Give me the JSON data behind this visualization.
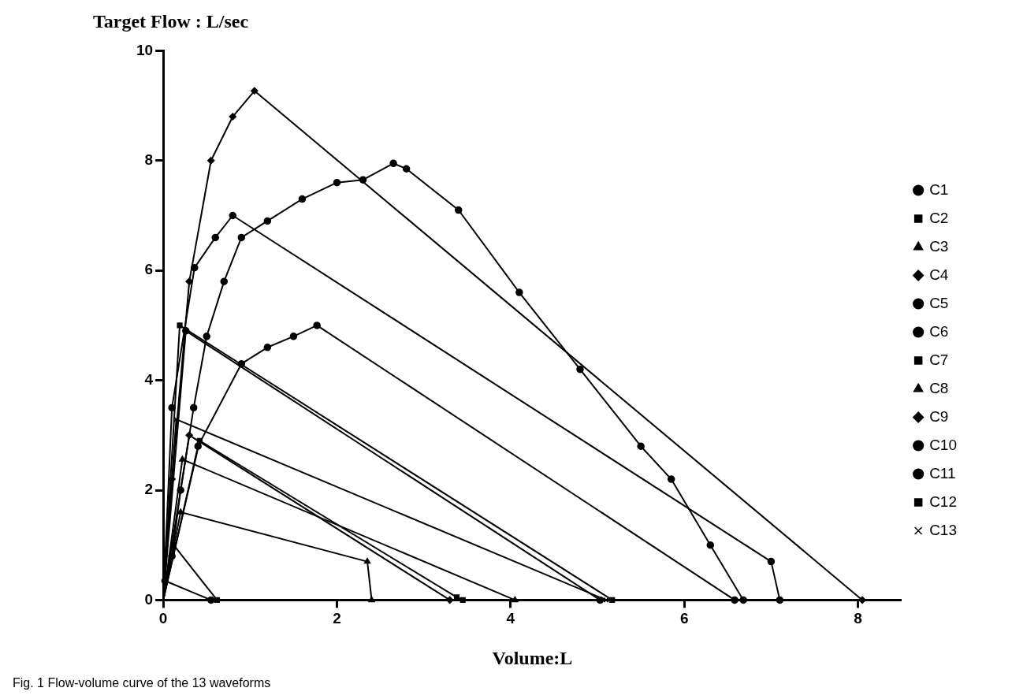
{
  "chart_data": {
    "type": "line",
    "ylabel": "Target Flow : L/sec",
    "xlabel": "Volume:L",
    "annotations": [
      "Fig. 1 Flow-volume curve of the 13 waveforms"
    ],
    "xlim": [
      0,
      8.5
    ],
    "xticks": [
      0,
      2,
      4,
      6,
      8
    ],
    "ylim": [
      0,
      10
    ],
    "yticks": [
      0,
      2,
      4,
      6,
      8,
      10
    ],
    "grid": false,
    "legend": "right",
    "line_style": "solid",
    "series": [
      {
        "name": "C1",
        "color": "#000000",
        "marker": "circle",
        "x": [
          0,
          0.02,
          0.55
        ],
        "values": [
          0,
          0.35,
          0
        ]
      },
      {
        "name": "C2",
        "color": "#000000",
        "marker": "square",
        "x": [
          0,
          0.12,
          0.62
        ],
        "values": [
          0,
          1.0,
          0
        ]
      },
      {
        "name": "C3",
        "color": "#000000",
        "marker": "triangle",
        "x": [
          0,
          0.2,
          2.35,
          2.4
        ],
        "values": [
          0,
          1.6,
          0.7,
          0
        ]
      },
      {
        "name": "C4",
        "color": "#000000",
        "marker": "diamond",
        "x": [
          0,
          0.1,
          0.3,
          0.55,
          0.8,
          1.05,
          8.05
        ],
        "values": [
          0,
          2.2,
          5.8,
          8,
          8.8,
          9.27,
          0
        ]
      },
      {
        "name": "C5",
        "color": "#000000",
        "marker": "circle",
        "x": [
          0,
          0.1,
          0.36,
          0.6,
          0.8,
          7.0,
          7.1
        ],
        "values": [
          0,
          3.5,
          6.05,
          6.6,
          7.0,
          0.7,
          0
        ]
      },
      {
        "name": "C6",
        "color": "#000000",
        "marker": "circle",
        "x": [
          0,
          0.1,
          0.2,
          0.35,
          0.5,
          0.7,
          0.9,
          1.2,
          1.6,
          2.0,
          2.3,
          2.65,
          2.8,
          3.4,
          4.1,
          4.8,
          5.5,
          5.85,
          6.3,
          6.68
        ],
        "values": [
          0,
          0.8,
          2,
          3.5,
          4.8,
          5.8,
          6.6,
          6.9,
          7.3,
          7.6,
          7.65,
          7.95,
          7.85,
          7.1,
          5.6,
          4.2,
          2.8,
          2.2,
          1.0,
          0
        ]
      },
      {
        "name": "C7",
        "color": "#000000",
        "marker": "square",
        "x": [
          0,
          0.42,
          3.38,
          3.45
        ],
        "values": [
          0,
          2.9,
          0.05,
          0
        ]
      },
      {
        "name": "C8",
        "color": "#000000",
        "marker": "triangle",
        "x": [
          0,
          0.22,
          4.05
        ],
        "values": [
          0,
          2.56,
          0
        ]
      },
      {
        "name": "C9",
        "color": "#000000",
        "marker": "diamond",
        "x": [
          0,
          0.3,
          3.3
        ],
        "values": [
          0,
          3.0,
          0
        ]
      },
      {
        "name": "C10",
        "color": "#000000",
        "marker": "circle",
        "x": [
          0,
          0.26,
          5.03
        ],
        "values": [
          0,
          4.9,
          0
        ]
      },
      {
        "name": "C11",
        "color": "#000000",
        "marker": "circle",
        "x": [
          0,
          0.4,
          0.9,
          1.2,
          1.5,
          1.77,
          6.58
        ],
        "values": [
          0,
          2.8,
          4.3,
          4.6,
          4.8,
          5.0,
          0
        ]
      },
      {
        "name": "C12",
        "color": "#000000",
        "marker": "square",
        "x": [
          0,
          0.19,
          5.17
        ],
        "values": [
          0,
          5.0,
          0
        ]
      },
      {
        "name": "C13",
        "color": "#000000",
        "marker": "cross",
        "x": [
          0,
          0.15,
          5.1
        ],
        "values": [
          0,
          3.29,
          0
        ]
      }
    ]
  }
}
